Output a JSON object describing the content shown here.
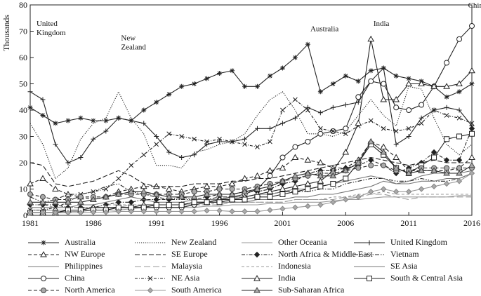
{
  "chart_data": {
    "type": "line",
    "title": "",
    "xlabel": "",
    "ylabel": "Thousands",
    "xlim": [
      1981,
      2016
    ],
    "ylim": [
      0,
      80
    ],
    "x_ticks": [
      "1981",
      "1986",
      "1991",
      "1996",
      "2001",
      "2006",
      "2011",
      "2016"
    ],
    "y_ticks": [
      "0",
      "10",
      "20",
      "30",
      "40",
      "50",
      "60",
      "70",
      "80"
    ],
    "grid": false,
    "legend_position": "bottom",
    "annotations": [
      {
        "text": "United Kingdom",
        "x": 1981.5,
        "y": 72
      },
      {
        "text": "New Zealand",
        "x": 1988.2,
        "y": 66.5
      },
      {
        "text": "Australia",
        "x": 2003.2,
        "y": 70
      },
      {
        "text": "India",
        "x": 2008.2,
        "y": 72
      },
      {
        "text": "China",
        "x": 2015.7,
        "y": 79
      }
    ],
    "x": [
      1981,
      1982,
      1983,
      1984,
      1985,
      1986,
      1987,
      1988,
      1989,
      1990,
      1991,
      1992,
      1993,
      1994,
      1995,
      1996,
      1997,
      1998,
      1999,
      2000,
      2001,
      2002,
      2003,
      2004,
      2005,
      2006,
      2007,
      2008,
      2009,
      2010,
      2011,
      2012,
      2013,
      2014,
      2015,
      2016
    ],
    "series": [
      {
        "name": "Australia",
        "color": "#222222",
        "dash": "",
        "marker": "star",
        "values": [
          41,
          38,
          35,
          36,
          37,
          36,
          36,
          37,
          36,
          40,
          43,
          46,
          49,
          50,
          52,
          54,
          55,
          49,
          49,
          53,
          56,
          60,
          65,
          47,
          50,
          53,
          51,
          55,
          56,
          53,
          52,
          51,
          49,
          45,
          47,
          50
        ]
      },
      {
        "name": "New Zealand",
        "color": "#222222",
        "dash": "1.2,1.8",
        "marker": "none",
        "values": [
          35,
          27,
          14,
          18,
          29,
          35,
          37,
          47,
          37,
          31,
          19,
          19,
          18,
          24,
          25,
          27,
          28,
          31,
          38,
          44,
          47,
          40,
          31,
          31,
          30,
          32,
          38,
          44,
          38,
          34,
          49,
          48,
          37,
          27,
          23,
          27
        ]
      },
      {
        "name": "Other Oceania",
        "color": "#9a9a9a",
        "dash": "",
        "marker": "none",
        "values": [
          1,
          1,
          1,
          1.5,
          1.5,
          2,
          2,
          2,
          2.5,
          3,
          3,
          3,
          3,
          3,
          3.5,
          3.5,
          4,
          4,
          4,
          4.5,
          4.5,
          5,
          5,
          5,
          5.5,
          6,
          6,
          6.5,
          7,
          7,
          7,
          7,
          7,
          7,
          7.5,
          7.5
        ]
      },
      {
        "name": "United Kingdom",
        "color": "#222222",
        "dash": "",
        "marker": "plus",
        "values": [
          47,
          44,
          27,
          20,
          22,
          29,
          32,
          37,
          36,
          35,
          30,
          24,
          22,
          23,
          27,
          28,
          28,
          29,
          33,
          33,
          35,
          37,
          41,
          39,
          41,
          42,
          43,
          51,
          56,
          27,
          30,
          37,
          40,
          41,
          40,
          34
        ]
      },
      {
        "name": "NW Europe",
        "color": "#222222",
        "dash": "5,3",
        "marker": "triangle_open",
        "values": [
          12,
          14,
          10,
          8,
          7,
          6,
          7,
          9,
          10,
          11,
          11,
          10,
          9,
          10,
          11,
          11,
          12,
          14,
          15,
          17,
          18,
          22,
          21,
          20,
          18,
          18,
          21,
          28,
          26,
          22,
          17,
          17,
          17,
          17,
          18,
          22
        ]
      },
      {
        "name": "SE Europe",
        "color": "#222222",
        "dash": "7,3",
        "marker": "none",
        "values": [
          20,
          19,
          12,
          11,
          12,
          13,
          15,
          17,
          15,
          12,
          11,
          11,
          11,
          12,
          12,
          12,
          13,
          13,
          14,
          14,
          15,
          16,
          17,
          18,
          19,
          20,
          21,
          22,
          21,
          20,
          19,
          20,
          21,
          20,
          20,
          20
        ]
      },
      {
        "name": "North Africa & Middle East",
        "color": "#222222",
        "dash": "5,2,1.5,2",
        "marker": "diamond",
        "values": [
          4,
          4,
          4,
          3,
          3,
          3,
          4,
          5,
          5,
          6,
          6,
          6,
          7,
          6,
          7,
          8,
          8,
          9,
          9,
          10,
          12,
          13,
          16,
          17,
          17,
          18,
          19,
          21,
          19,
          16,
          18,
          20,
          24,
          21,
          21,
          33
        ]
      },
      {
        "name": "Vietnam",
        "color": "#222222",
        "dash": "6,2,1.5,2,1.5,2",
        "marker": "none",
        "values": [
          7,
          5,
          6,
          8,
          8,
          9,
          11,
          12,
          9,
          8,
          7,
          6,
          6,
          6,
          6,
          7,
          7,
          7,
          8,
          8,
          9,
          9,
          9,
          10,
          10,
          12,
          13,
          14,
          14,
          13,
          13,
          14,
          13,
          13,
          14,
          16
        ]
      },
      {
        "name": "Philippines",
        "color": "#777777",
        "dash": "",
        "marker": "none",
        "values": [
          3,
          3,
          3,
          3,
          4,
          4,
          5,
          6,
          7,
          6,
          5,
          5,
          5,
          6,
          6,
          6,
          7,
          7,
          8,
          8,
          9,
          10,
          10,
          11,
          12,
          13,
          14,
          15,
          14,
          12,
          12,
          13,
          13,
          14,
          14,
          16
        ]
      },
      {
        "name": "Malaysia",
        "color": "#9a9a9a",
        "dash": "9,4",
        "marker": "none",
        "values": [
          2,
          2,
          2,
          2,
          2,
          3,
          3,
          3,
          4,
          4,
          4,
          4,
          4,
          4,
          4,
          4,
          5,
          5,
          5,
          5,
          5,
          6,
          6,
          6,
          6,
          7,
          7,
          8,
          8,
          7,
          6,
          7,
          7,
          7,
          7,
          7
        ]
      },
      {
        "name": "Indonesia",
        "color": "#9a9a9a",
        "dash": "4,3",
        "marker": "none",
        "values": [
          4,
          4,
          3,
          3,
          3,
          3,
          4,
          4,
          4,
          4,
          4,
          4,
          4,
          4,
          4,
          5,
          5,
          5,
          5,
          5,
          5,
          6,
          6,
          6,
          7,
          7,
          8,
          8,
          9,
          8,
          8,
          8,
          8,
          8,
          8,
          8
        ]
      },
      {
        "name": "SE Asia",
        "color": "#777777",
        "dash": "",
        "marker": "none",
        "values": [
          2,
          2,
          2,
          2,
          2,
          3,
          3,
          3,
          3,
          4,
          4,
          4,
          4,
          4,
          5,
          5,
          5,
          5,
          6,
          6,
          6,
          7,
          7,
          8,
          8,
          9,
          10,
          11,
          13,
          12,
          13,
          15,
          16,
          16,
          16,
          17
        ]
      },
      {
        "name": "China",
        "color": "#222222",
        "dash": "",
        "marker": "circle_open",
        "values": [
          1,
          1,
          1,
          2,
          2,
          2,
          2,
          3,
          3,
          3,
          3,
          3,
          3,
          4,
          5,
          6,
          7,
          8,
          10,
          15,
          22,
          26,
          28,
          31,
          32,
          33,
          45,
          51,
          50,
          41,
          40,
          42,
          49,
          58,
          67,
          72
        ]
      },
      {
        "name": "NE Asia",
        "color": "#222222",
        "dash": "4,2,1,2",
        "marker": "x",
        "values": [
          2,
          2,
          3,
          5,
          8,
          9,
          10,
          14,
          19,
          23,
          27,
          31,
          30,
          29,
          28,
          29,
          28,
          27,
          26,
          28,
          40,
          44,
          40,
          33,
          32,
          31,
          34,
          36,
          33,
          32,
          33,
          35,
          40,
          38,
          37,
          35
        ]
      },
      {
        "name": "India",
        "color": "#222222",
        "dash": "",
        "marker": "triangle_open",
        "values": [
          1,
          1,
          1,
          2,
          2,
          3,
          3,
          3,
          3,
          4,
          4,
          4,
          4,
          5,
          5,
          6,
          6,
          7,
          8,
          9,
          10,
          11,
          12,
          13,
          17,
          24,
          35,
          67,
          44,
          44,
          50,
          50,
          49,
          49,
          50,
          55
        ]
      },
      {
        "name": "South & Central Asia",
        "color": "#222222",
        "dash": "",
        "marker": "square_open",
        "values": [
          1,
          1,
          1,
          2,
          2,
          2,
          2,
          3,
          3,
          3,
          4,
          4,
          4,
          5,
          5,
          5,
          6,
          6,
          7,
          7,
          8,
          9,
          10,
          11,
          12,
          14,
          20,
          27,
          23,
          18,
          16,
          19,
          22,
          29,
          30,
          31
        ]
      },
      {
        "name": "North America",
        "color": "#222222",
        "dash": "5,3",
        "marker": "circle_filled",
        "values": [
          8,
          7,
          6,
          6,
          7,
          7,
          7,
          8,
          8,
          8,
          8,
          8,
          8,
          9,
          9,
          10,
          10,
          10,
          11,
          12,
          13,
          14,
          15,
          16,
          16,
          17,
          18,
          19,
          19,
          17,
          17,
          18,
          18,
          18,
          18,
          18
        ]
      },
      {
        "name": "South America",
        "color": "#999999",
        "dash": "",
        "marker": "diamond_gray",
        "values": [
          1,
          1,
          1,
          1,
          1,
          1.2,
          1.2,
          1.5,
          1.5,
          1.5,
          1.5,
          1.5,
          1.5,
          1.5,
          1.8,
          1.8,
          1.5,
          1.5,
          1.5,
          2,
          2.5,
          3,
          3.5,
          4,
          5,
          6,
          7,
          9,
          10,
          9,
          9,
          10,
          11,
          12,
          13,
          16
        ]
      },
      {
        "name": "Sub-Saharan Africa",
        "color": "#222222",
        "dash": "",
        "marker": "triangle_gray",
        "values": [
          5,
          5,
          5,
          5,
          5,
          6,
          7,
          8,
          9,
          9,
          8,
          7,
          7,
          7,
          8,
          8,
          8,
          9,
          10,
          11,
          13,
          15,
          16,
          15,
          15,
          17,
          20,
          28,
          24,
          18,
          16,
          17,
          17,
          16,
          16,
          19
        ]
      }
    ]
  }
}
